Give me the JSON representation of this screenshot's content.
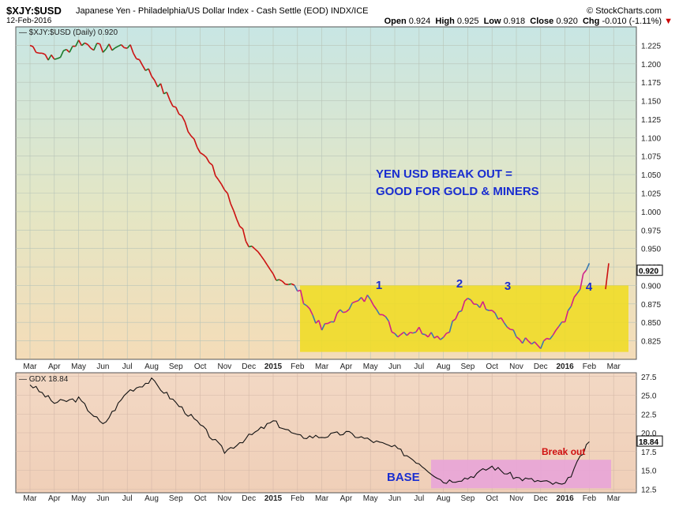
{
  "header": {
    "symbol": "$XJY:$USD",
    "description": "Japanese Yen - Philadelphia/US Dollar Index - Cash Settle (EOD)  INDX/ICE",
    "date": "12-Feb-2016",
    "source": "© StockCharts.com",
    "open_label": "Open",
    "open": "0.924",
    "high_label": "High",
    "high": "0.925",
    "low_label": "Low",
    "low": "0.918",
    "close_label": "Close",
    "close": "0.920",
    "chg_label": "Chg",
    "chg": "-0.010 (-1.11%)"
  },
  "colors": {
    "up": "#1a7a2a",
    "down": "#cc1111",
    "ma_cross": "#d0208a",
    "ma_steel": "#3a7ab0",
    "box_yellow": "#f0dc1e",
    "box_pink": "#e8a4d8",
    "annotation_blue": "#1a2ed0",
    "annotation_red": "#d01010"
  },
  "months": [
    "Mar",
    "Apr",
    "May",
    "Jun",
    "Jul",
    "Aug",
    "Sep",
    "Oct",
    "Nov",
    "Dec",
    "2015",
    "Feb",
    "Mar",
    "Apr",
    "May",
    "Jun",
    "Jul",
    "Aug",
    "Sep",
    "Oct",
    "Nov",
    "Dec",
    "2016",
    "Feb",
    "Mar"
  ],
  "chart_data": [
    {
      "type": "line",
      "legend": "$XJY:$USD (Daily) 0.920",
      "last_value": "0.920",
      "ylim": [
        0.8,
        1.25
      ],
      "yticks": [
        "0.825",
        "0.850",
        "0.875",
        "0.900",
        "0.925",
        "0.950",
        "0.975",
        "1.000",
        "1.025",
        "1.050",
        "1.075",
        "1.100",
        "1.125",
        "1.150",
        "1.175",
        "1.200",
        "1.225"
      ],
      "x": [
        "Mar",
        "Apr",
        "May",
        "Jun",
        "Jul",
        "Aug",
        "Sep",
        "Oct",
        "Nov",
        "Dec",
        "2015",
        "Feb",
        "Mar",
        "Apr",
        "May",
        "Jun",
        "Jul",
        "Aug",
        "Sep",
        "Oct",
        "Nov",
        "Dec",
        "2016",
        "Feb"
      ],
      "values": [
        1.225,
        1.205,
        1.23,
        1.22,
        1.225,
        1.185,
        1.14,
        1.085,
        1.03,
        0.955,
        0.915,
        0.895,
        0.84,
        0.87,
        0.885,
        0.835,
        0.84,
        0.83,
        0.88,
        0.87,
        0.83,
        0.815,
        0.85,
        0.93
      ],
      "annotations": [
        "YEN USD BREAK OUT =",
        "GOOD FOR GOLD & MINERS"
      ],
      "peak_labels": [
        "1",
        "2",
        "3",
        "4"
      ],
      "highlight": "yellow box (base)"
    },
    {
      "type": "line",
      "legend": "GDX 18.84",
      "last_value": "18.84",
      "ylim": [
        12,
        28
      ],
      "yticks": [
        "12.5",
        "15.0",
        "17.5",
        "20.0",
        "22.5",
        "25.0",
        "27.5"
      ],
      "x": [
        "Mar",
        "Apr",
        "May",
        "Jun",
        "Jul",
        "Aug",
        "Sep",
        "Oct",
        "Nov",
        "Dec",
        "2015",
        "Feb",
        "Mar",
        "Apr",
        "May",
        "Jun",
        "Jul",
        "Aug",
        "Sep",
        "Oct",
        "Nov",
        "Dec",
        "2016",
        "Feb"
      ],
      "values": [
        26.5,
        24.0,
        24.5,
        21.0,
        25.5,
        27.0,
        24.0,
        21.0,
        17.5,
        19.5,
        21.5,
        19.5,
        19.5,
        20.0,
        19.0,
        18.0,
        16.0,
        13.5,
        14.0,
        15.5,
        14.0,
        13.5,
        13.0,
        18.8
      ],
      "annotations": [
        "Break out",
        "BASE"
      ],
      "highlight": "pink box (base)"
    }
  ]
}
